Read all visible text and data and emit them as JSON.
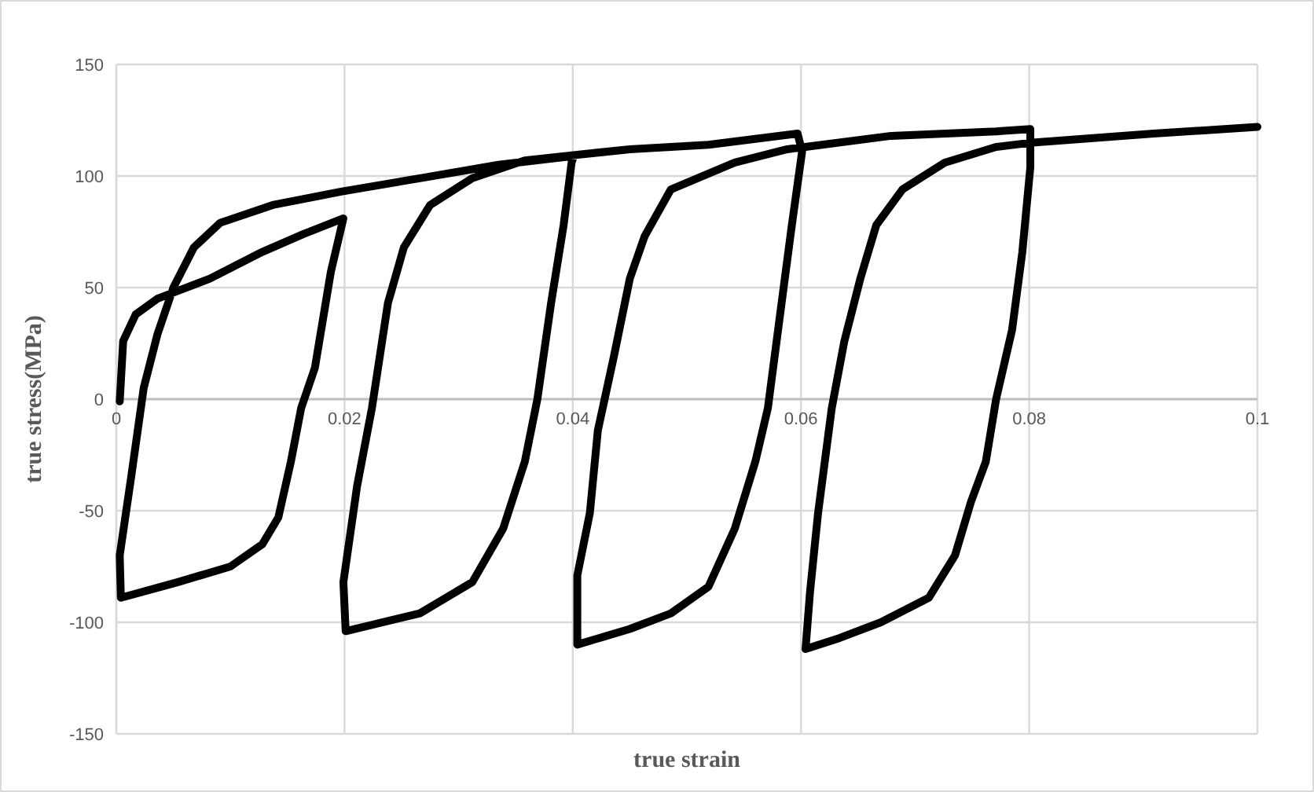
{
  "chart_data": {
    "type": "line",
    "xlabel": "true strain",
    "ylabel": "true stress(MPa)",
    "xlim": [
      0,
      0.1
    ],
    "ylim": [
      -150,
      150
    ],
    "xticks": [
      0,
      0.02,
      0.04,
      0.06,
      0.08,
      0.1
    ],
    "yticks": [
      -150,
      -100,
      -50,
      0,
      50,
      100,
      150
    ],
    "grid": true,
    "marker": "none",
    "line_style": "solid",
    "series": [
      {
        "color": "#000000",
        "x": [
          0.0003,
          0.0006,
          0.0017,
          0.0036,
          0.0082,
          0.0128,
          0.0164,
          0.0199,
          0.0188,
          0.0174,
          0.0162,
          0.0153,
          0.0142,
          0.0128,
          0.01,
          0.0054,
          0.0004,
          0.0003,
          0.0013,
          0.0024,
          0.0036,
          0.005,
          0.0068,
          0.0091,
          0.0137,
          0.0197,
          0.0266,
          0.0335,
          0.0401,
          0.0399,
          0.0392,
          0.0381,
          0.0369,
          0.0358,
          0.0339,
          0.0312,
          0.0266,
          0.0201,
          0.0199,
          0.0211,
          0.0224,
          0.0238,
          0.0252,
          0.0275,
          0.0312,
          0.0358,
          0.045,
          0.0519,
          0.0597,
          0.0601,
          0.0592,
          0.0583,
          0.0571,
          0.056,
          0.0542,
          0.0519,
          0.0486,
          0.045,
          0.0404,
          0.0404,
          0.0415,
          0.0422,
          0.0436,
          0.045,
          0.0463,
          0.0486,
          0.0542,
          0.0588,
          0.0679,
          0.0771,
          0.0801,
          0.0801,
          0.0794,
          0.0785,
          0.0771,
          0.0762,
          0.0749,
          0.0735,
          0.0712,
          0.067,
          0.0634,
          0.0604,
          0.0608,
          0.0615,
          0.0627,
          0.0638,
          0.0652,
          0.0666,
          0.0689,
          0.0726,
          0.0771,
          0.0803,
          0.0909,
          0.1
        ],
        "values": [
          -1,
          26,
          38,
          45,
          54,
          66,
          74,
          81,
          57,
          14,
          -4,
          -28,
          -53,
          -65,
          -75,
          -82,
          -89,
          -70,
          -35,
          5,
          29,
          50,
          68,
          79,
          87,
          93,
          99,
          105,
          109,
          106,
          78,
          43,
          0,
          -28,
          -58,
          -82,
          -96,
          -104,
          -82,
          -39,
          -4,
          43,
          68,
          87,
          99,
          107,
          112,
          114,
          119,
          111,
          78,
          43,
          -4,
          -28,
          -58,
          -84,
          -96,
          -103,
          -110,
          -79,
          -51,
          -14,
          19,
          54,
          73,
          94,
          106,
          112,
          118,
          120,
          121,
          104,
          66,
          31,
          0,
          -28,
          -46,
          -70,
          -89,
          -100,
          -107,
          -112,
          -86,
          -51,
          -4,
          26,
          54,
          78,
          94,
          106,
          113,
          115,
          119,
          122
        ]
      }
    ]
  }
}
